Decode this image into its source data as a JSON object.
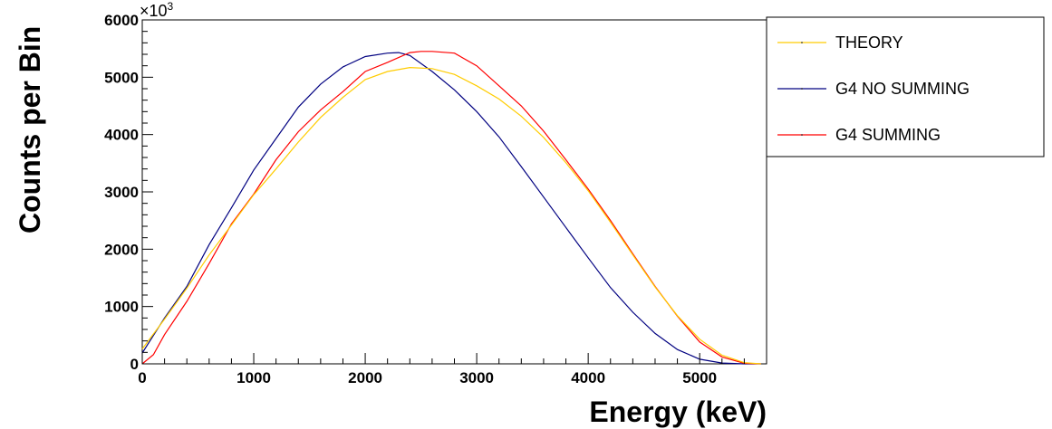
{
  "chart_data": {
    "type": "line",
    "xlabel": "Energy (keV)",
    "ylabel": "Counts per Bin",
    "xlim": [
      0,
      5600
    ],
    "ylim": [
      0,
      6000
    ],
    "y_multiplier": {
      "base": "×10",
      "exponent": "3"
    },
    "x_ticks": [
      0,
      1000,
      2000,
      3000,
      4000,
      5000
    ],
    "x_tick_labels": [
      "0",
      "1000",
      "2000",
      "3000",
      "4000",
      "5000"
    ],
    "y_ticks": [
      0,
      1000,
      2000,
      3000,
      4000,
      5000,
      6000
    ],
    "y_tick_labels": [
      "0",
      "1000",
      "2000",
      "3000",
      "4000",
      "5000",
      "6000"
    ],
    "legend_position": "top-right, outside plot",
    "grid": false,
    "series": [
      {
        "name": "THEORY",
        "color": "#ffcc00",
        "x": [
          0,
          200,
          400,
          600,
          800,
          1000,
          1200,
          1400,
          1600,
          1800,
          2000,
          2200,
          2400,
          2600,
          2800,
          3000,
          3200,
          3400,
          3600,
          3800,
          4000,
          4200,
          4400,
          4600,
          4800,
          5000,
          5200,
          5400,
          5550
        ],
        "y": [
          260,
          780,
          1320,
          1900,
          2420,
          2950,
          3400,
          3870,
          4300,
          4650,
          4960,
          5100,
          5170,
          5150,
          5050,
          4850,
          4620,
          4320,
          3950,
          3510,
          3020,
          2470,
          1900,
          1340,
          840,
          430,
          150,
          20,
          0
        ]
      },
      {
        "name": "G4 NO SUMMING",
        "color": "#000080",
        "x": [
          0,
          200,
          400,
          600,
          800,
          1000,
          1200,
          1400,
          1600,
          1800,
          2000,
          2200,
          2300,
          2400,
          2600,
          2800,
          3000,
          3200,
          3400,
          3600,
          3800,
          4000,
          4200,
          4400,
          4600,
          4800,
          5000,
          5200,
          5400,
          5550
        ],
        "y": [
          190,
          800,
          1350,
          2080,
          2720,
          3380,
          3930,
          4480,
          4880,
          5180,
          5360,
          5420,
          5430,
          5380,
          5100,
          4780,
          4400,
          3960,
          3440,
          2910,
          2380,
          1850,
          1330,
          900,
          530,
          250,
          80,
          15,
          0,
          0
        ]
      },
      {
        "name": "G4 SUMMING",
        "color": "#ff0000",
        "x": [
          0,
          100,
          200,
          400,
          600,
          800,
          1000,
          1200,
          1400,
          1600,
          1800,
          2000,
          2200,
          2400,
          2500,
          2600,
          2800,
          3000,
          3200,
          3400,
          3600,
          3800,
          4000,
          4200,
          4400,
          4600,
          4800,
          5000,
          5200,
          5400,
          5550
        ],
        "y": [
          0,
          160,
          510,
          1090,
          1750,
          2440,
          2960,
          3560,
          4050,
          4430,
          4750,
          5100,
          5260,
          5430,
          5450,
          5450,
          5420,
          5200,
          4850,
          4500,
          4060,
          3560,
          3050,
          2500,
          1920,
          1350,
          830,
          380,
          120,
          10,
          0
        ]
      }
    ]
  }
}
